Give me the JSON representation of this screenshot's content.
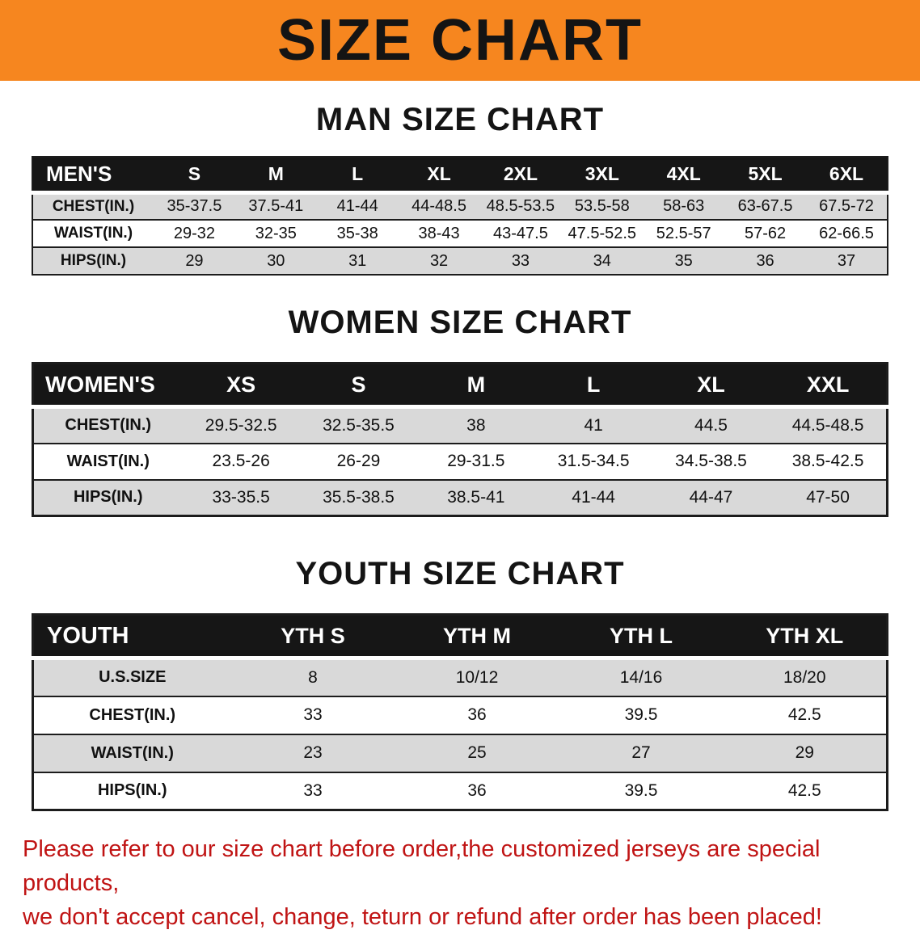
{
  "banner": {
    "title": "SIZE CHART"
  },
  "colors": {
    "banner_bg": "#f6861f",
    "header_bg": "#161616",
    "row_alt": "#d9d9d9",
    "footer_text": "#c01414"
  },
  "sections": [
    {
      "id": "men",
      "title": "MAN SIZE CHART",
      "label": "MEN'S",
      "columns": [
        "S",
        "M",
        "L",
        "XL",
        "2XL",
        "3XL",
        "4XL",
        "5XL",
        "6XL"
      ],
      "rows": [
        {
          "label": "CHEST(IN.)",
          "values": [
            "35-37.5",
            "37.5-41",
            "41-44",
            "44-48.5",
            "48.5-53.5",
            "53.5-58",
            "58-63",
            "63-67.5",
            "67.5-72"
          ]
        },
        {
          "label": "WAIST(IN.)",
          "values": [
            "29-32",
            "32-35",
            "35-38",
            "38-43",
            "43-47.5",
            "47.5-52.5",
            "52.5-57",
            "57-62",
            "62-66.5"
          ]
        },
        {
          "label": "HIPS(IN.)",
          "values": [
            "29",
            "30",
            "31",
            "32",
            "33",
            "34",
            "35",
            "36",
            "37"
          ]
        }
      ]
    },
    {
      "id": "women",
      "title": "WOMEN SIZE CHART",
      "label": "WOMEN'S",
      "columns": [
        "XS",
        "S",
        "M",
        "L",
        "XL",
        "XXL"
      ],
      "rows": [
        {
          "label": "CHEST(IN.)",
          "values": [
            "29.5-32.5",
            "32.5-35.5",
            "38",
            "41",
            "44.5",
            "44.5-48.5"
          ]
        },
        {
          "label": "WAIST(IN.)",
          "values": [
            "23.5-26",
            "26-29",
            "29-31.5",
            "31.5-34.5",
            "34.5-38.5",
            "38.5-42.5"
          ]
        },
        {
          "label": "HIPS(IN.)",
          "values": [
            "33-35.5",
            "35.5-38.5",
            "38.5-41",
            "41-44",
            "44-47",
            "47-50"
          ]
        }
      ]
    },
    {
      "id": "youth",
      "title": "YOUTH SIZE CHART",
      "label": "YOUTH",
      "columns": [
        "YTH S",
        "YTH M",
        "YTH L",
        "YTH XL"
      ],
      "rows": [
        {
          "label": "U.S.SIZE",
          "values": [
            "8",
            "10/12",
            "14/16",
            "18/20"
          ]
        },
        {
          "label": "CHEST(IN.)",
          "values": [
            "33",
            "36",
            "39.5",
            "42.5"
          ]
        },
        {
          "label": "WAIST(IN.)",
          "values": [
            "23",
            "25",
            "27",
            "29"
          ]
        },
        {
          "label": "HIPS(IN.)",
          "values": [
            "33",
            "36",
            "39.5",
            "42.5"
          ]
        }
      ]
    }
  ],
  "footer": {
    "line1": "Please refer to our size chart before order,the customized jerseys are special products,",
    "line2": "we don't accept cancel, change, teturn or refund after order has been placed!"
  }
}
